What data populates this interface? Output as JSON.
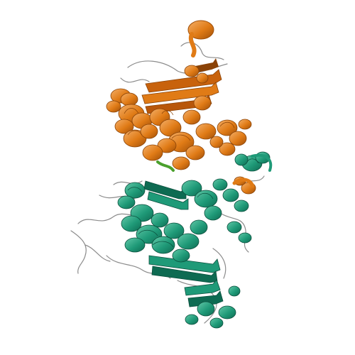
{
  "viewer": {
    "background": "#ffffff",
    "style": "cartoon"
  },
  "chains": [
    {
      "id": "chain-a",
      "color": "#e07b16",
      "dark": "#a04f08",
      "highlight": "#f4b06a"
    },
    {
      "id": "chain-b",
      "color": "#1f9a78",
      "dark": "#0e6b52",
      "highlight": "#63c9a9"
    }
  ],
  "loop_color": "#8c8c8c",
  "accent_color": "#4aa02c"
}
